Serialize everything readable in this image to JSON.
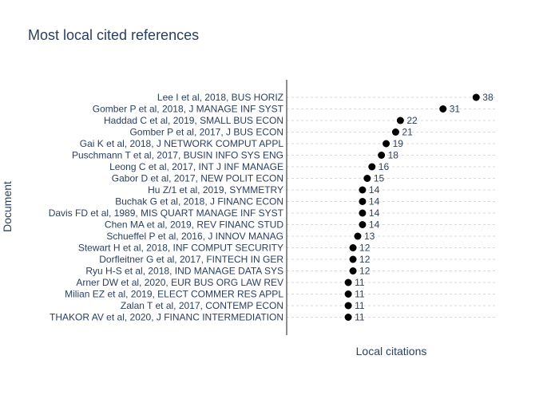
{
  "chart_data": {
    "type": "scatter",
    "title": "Most local cited references",
    "xlabel": "Local citations",
    "ylabel": "Document",
    "xlim": [
      -2,
      42
    ],
    "grid": "horizontal dotted",
    "marker_color": "#000000",
    "text_color": "#2a3f5f",
    "categories": [
      "Lee I et al, 2018, BUS HORIZ",
      "Gomber P et al, 2018, J MANAGE INF SYST",
      "Haddad C et al, 2019, SMALL BUS ECON",
      "Gomber P et al, 2017, J BUS ECON",
      "Gai K et al, 2018, J NETWORK COMPUT APPL",
      "Puschmann T et al, 2017, BUSIN INFO SYS ENG",
      "Leong C et al, 2017, INT J INF MANAGE",
      "Gabor D et al, 2017, NEW POLIT ECON",
      "Hu Z/1 et al, 2019, SYMMETRY",
      "Buchak G et al, 2018, J FINANC ECON",
      "Davis FD et al, 1989, MIS QUART MANAGE INF SYST",
      "Chen MA et al, 2019, REV FINANC STUD",
      "Schueffel P et al, 2016, J INNOV MANAG",
      "Stewart H et al, 2018, INF COMPUT SECURITY",
      "Dorfleitner G et al, 2017, FINTECH IN GER",
      "Ryu H-S et al, 2018, IND MANAGE DATA SYS",
      "Arner DW et al, 2020, EUR BUS ORG LAW REV",
      "Milian EZ et al, 2019, ELECT COMMER RES APPL",
      "Zalan T et al, 2017, CONTEMP ECON",
      "THAKOR AV et al, 2020, J FINANC INTERMEDIATION"
    ],
    "values": [
      38,
      31,
      22,
      21,
      19,
      18,
      16,
      15,
      14,
      14,
      14,
      14,
      13,
      12,
      12,
      12,
      11,
      11,
      11,
      11
    ],
    "value_labels": [
      "38",
      "31",
      "22",
      "21",
      "19",
      "18",
      "16",
      "15",
      "14",
      "14",
      "14",
      "14",
      "13",
      "12",
      "12",
      "12",
      "11",
      "11",
      "11",
      "11"
    ]
  }
}
